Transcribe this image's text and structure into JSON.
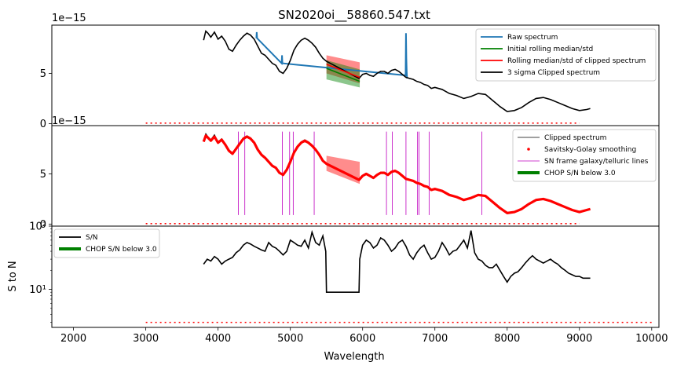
{
  "chart_data": [
    {
      "type": "line",
      "title": "SN2020oi__58860.547.txt",
      "scale_label": "1e−15",
      "xlim": [
        1700,
        10100
      ],
      "ylim": [
        -0.2,
        9.8
      ],
      "yticks": [
        0,
        5
      ],
      "ytick_labels": [
        "0",
        "5"
      ],
      "legend": {
        "placement": "upper right",
        "entries": [
          {
            "label": "Raw spectrum",
            "color": "#1f77b4"
          },
          {
            "label": "Initial rolling median/std",
            "color": "#008000"
          },
          {
            "label": "Rolling median/std of clipped spectrum",
            "color": "#ff0000"
          },
          {
            "label": "3 sigma Clipped spectrum",
            "color": "#000000"
          }
        ]
      },
      "series": [
        {
          "name": "Raw spectrum",
          "color": "#1f77b4",
          "x": [
            4530,
            4535,
            4540,
            4880,
            4885,
            4890,
            6595,
            6600,
            6605,
            6610,
            6615
          ],
          "y": [
            8.5,
            9.1,
            8.5,
            6.0,
            6.8,
            6.0,
            4.8,
            9.0,
            6.5,
            5.2,
            4.5
          ]
        },
        {
          "name": "3 sigma Clipped spectrum",
          "color": "#000000",
          "x": [
            3800,
            3830,
            3860,
            3900,
            3950,
            4000,
            4050,
            4100,
            4150,
            4200,
            4250,
            4300,
            4350,
            4400,
            4450,
            4500,
            4550,
            4600,
            4650,
            4700,
            4750,
            4800,
            4850,
            4900,
            4950,
            5000,
            5050,
            5100,
            5150,
            5200,
            5250,
            5300,
            5350,
            5400,
            5450,
            5500,
            5950,
            6000,
            6050,
            6100,
            6150,
            6200,
            6250,
            6300,
            6350,
            6400,
            6450,
            6500,
            6550,
            6600,
            6650,
            6700,
            6750,
            6800,
            6850,
            6900,
            6950,
            7000,
            7100,
            7200,
            7300,
            7400,
            7500,
            7600,
            7700,
            7800,
            7900,
            8000,
            8100,
            8200,
            8300,
            8400,
            8500,
            8600,
            8700,
            8800,
            8900,
            9000,
            9100,
            9150
          ],
          "y": [
            8.3,
            9.2,
            9.0,
            8.6,
            9.1,
            8.4,
            8.7,
            8.2,
            7.4,
            7.2,
            7.8,
            8.3,
            8.7,
            9.0,
            8.8,
            8.4,
            7.7,
            7.0,
            6.8,
            6.4,
            6.0,
            5.8,
            5.2,
            5.0,
            5.5,
            6.3,
            7.3,
            7.9,
            8.3,
            8.5,
            8.3,
            8.0,
            7.6,
            7.0,
            6.5,
            6.2,
            4.5,
            4.9,
            5.0,
            4.8,
            4.7,
            5.0,
            5.2,
            5.2,
            5.0,
            5.3,
            5.4,
            5.2,
            4.9,
            4.6,
            4.5,
            4.4,
            4.2,
            4.1,
            3.9,
            3.8,
            3.5,
            3.6,
            3.4,
            3.0,
            2.8,
            2.5,
            2.7,
            3.0,
            2.9,
            2.3,
            1.7,
            1.2,
            1.3,
            1.6,
            2.1,
            2.5,
            2.6,
            2.4,
            2.1,
            1.8,
            1.5,
            1.3,
            1.4,
            1.5
          ]
        },
        {
          "name": "Rolling median/std of clipped spectrum",
          "color": "#ff0000",
          "x": [
            5500,
            5960
          ],
          "y": [
            5.9,
            4.6
          ]
        },
        {
          "name": "Initial rolling median/std",
          "color": "#008000",
          "x": [
            5500,
            5960
          ],
          "y": [
            5.5,
            4.2
          ]
        },
        {
          "name": "red dotted",
          "color": "#ff0000",
          "x": [
            3000,
            9000
          ],
          "y": [
            0.05,
            0.05
          ]
        }
      ],
      "bands": [
        {
          "name": "Rolling median/std of clipped spectrum",
          "color": "#ff0000",
          "x": [
            5500,
            5960
          ],
          "lower": [
            5.0,
            4.0
          ],
          "upper": [
            6.8,
            6.1
          ]
        },
        {
          "name": "Initial rolling median/std",
          "color": "#008000",
          "x": [
            5500,
            5960
          ],
          "lower": [
            4.4,
            3.6
          ],
          "upper": [
            6.3,
            5.4
          ]
        }
      ]
    },
    {
      "type": "line",
      "scale_label": "1e−15",
      "xlim": [
        1700,
        10100
      ],
      "ylim": [
        -0.2,
        9.8
      ],
      "yticks": [
        0,
        5
      ],
      "ytick_labels": [
        "0",
        "5"
      ],
      "legend": {
        "placement": "upper right",
        "entries": [
          {
            "label": "Clipped spectrum",
            "color": "#000000"
          },
          {
            "label": "Savitsky-Golay smoothing",
            "color": "#ff0000"
          },
          {
            "label": "SN frame galaxy/telluric lines",
            "color": "#bf00bf"
          },
          {
            "label": "CHOP S/N below 3.0",
            "color": "#008000"
          }
        ]
      },
      "lines_x": [
        4280,
        4370,
        4890,
        4990,
        5040,
        5330,
        6330,
        6410,
        6600,
        6760,
        6780,
        6920,
        7650
      ],
      "band": {
        "x": [
          5500,
          5960
        ],
        "lower": [
          5.3,
          4.0
        ],
        "upper": [
          6.8,
          6.2
        ]
      },
      "series": [
        {
          "name": "Clipped spectrum",
          "color": "#000000",
          "x": [
            3800,
            3830,
            3860,
            3900,
            3950,
            4000,
            4050,
            4100,
            4150,
            4200,
            4250,
            4300,
            4350,
            4400,
            4450,
            4500,
            4550,
            4600,
            4650,
            4700,
            4750,
            4800,
            4850,
            4900,
            4950,
            5000,
            5050,
            5100,
            5150,
            5200,
            5250,
            5300,
            5350,
            5400,
            5450,
            5500,
            5950,
            6000,
            6050,
            6100,
            6150,
            6200,
            6250,
            6300,
            6350,
            6400,
            6450,
            6500,
            6550,
            6600,
            6650,
            6700,
            6750,
            6800,
            6850,
            6900,
            6950,
            7000,
            7100,
            7200,
            7300,
            7400,
            7500,
            7600,
            7700,
            7800,
            7900,
            8000,
            8100,
            8200,
            8300,
            8400,
            8500,
            8600,
            8700,
            8800,
            8900,
            9000,
            9100,
            9150
          ],
          "y": [
            8.3,
            9.0,
            8.7,
            8.4,
            8.9,
            8.2,
            8.5,
            8.0,
            7.3,
            7.0,
            7.6,
            8.1,
            8.6,
            8.8,
            8.6,
            8.2,
            7.5,
            6.9,
            6.6,
            6.2,
            5.8,
            5.6,
            5.1,
            4.9,
            5.4,
            6.2,
            7.2,
            7.8,
            8.2,
            8.4,
            8.2,
            7.9,
            7.4,
            6.9,
            6.3,
            6.0,
            4.4,
            4.8,
            5.0,
            4.8,
            4.6,
            4.9,
            5.1,
            5.1,
            4.9,
            5.2,
            5.3,
            5.1,
            4.8,
            4.5,
            4.4,
            4.3,
            4.1,
            4.0,
            3.8,
            3.7,
            3.4,
            3.5,
            3.3,
            2.9,
            2.7,
            2.4,
            2.6,
            2.9,
            2.8,
            2.2,
            1.6,
            1.1,
            1.2,
            1.5,
            2.0,
            2.4,
            2.5,
            2.3,
            2.0,
            1.7,
            1.4,
            1.2,
            1.4,
            1.5
          ]
        },
        {
          "name": "Savitsky-Golay smoothing",
          "color": "#ff0000",
          "x": [
            3800,
            3830,
            3860,
            3900,
            3950,
            4000,
            4050,
            4100,
            4150,
            4200,
            4250,
            4300,
            4350,
            4400,
            4450,
            4500,
            4550,
            4600,
            4650,
            4700,
            4750,
            4800,
            4850,
            4900,
            4950,
            5000,
            5050,
            5100,
            5150,
            5200,
            5250,
            5300,
            5350,
            5400,
            5450,
            5500,
            5950,
            6000,
            6050,
            6100,
            6150,
            6200,
            6250,
            6300,
            6350,
            6400,
            6450,
            6500,
            6550,
            6600,
            6650,
            6700,
            6750,
            6800,
            6850,
            6900,
            6950,
            7000,
            7100,
            7200,
            7300,
            7400,
            7500,
            7600,
            7700,
            7800,
            7900,
            8000,
            8100,
            8200,
            8300,
            8400,
            8500,
            8600,
            8700,
            8800,
            8900,
            9000,
            9100,
            9150
          ],
          "y": [
            8.2,
            8.8,
            8.6,
            8.3,
            8.7,
            8.1,
            8.4,
            7.9,
            7.3,
            7.0,
            7.5,
            8.0,
            8.5,
            8.7,
            8.5,
            8.1,
            7.4,
            6.9,
            6.6,
            6.2,
            5.8,
            5.6,
            5.1,
            4.9,
            5.4,
            6.2,
            7.1,
            7.7,
            8.1,
            8.3,
            8.1,
            7.8,
            7.4,
            6.9,
            6.3,
            6.0,
            4.4,
            4.8,
            5.0,
            4.8,
            4.6,
            4.9,
            5.1,
            5.1,
            4.9,
            5.2,
            5.3,
            5.1,
            4.8,
            4.5,
            4.4,
            4.3,
            4.1,
            4.0,
            3.8,
            3.7,
            3.4,
            3.5,
            3.3,
            2.9,
            2.7,
            2.4,
            2.6,
            2.9,
            2.8,
            2.2,
            1.6,
            1.1,
            1.2,
            1.5,
            2.0,
            2.4,
            2.5,
            2.3,
            2.0,
            1.7,
            1.4,
            1.2,
            1.4,
            1.5
          ]
        },
        {
          "name": "red dotted",
          "color": "#ff0000",
          "x": [
            3000,
            9000
          ],
          "y": [
            0.05,
            0.05
          ]
        }
      ]
    },
    {
      "type": "line",
      "xlabel": "Wavelength",
      "ylabel": "S to N",
      "yscale": "log",
      "xlim": [
        1700,
        10100
      ],
      "ylim": [
        2.5,
        100
      ],
      "xticks": [
        2000,
        3000,
        4000,
        5000,
        6000,
        7000,
        8000,
        9000,
        10000
      ],
      "xtick_labels": [
        "2000",
        "3000",
        "4000",
        "5000",
        "6000",
        "7000",
        "8000",
        "9000",
        "10000"
      ],
      "yticks": [
        10,
        100
      ],
      "ytick_labels": [
        "10¹",
        "10²"
      ],
      "legend": {
        "placement": "upper left",
        "entries": [
          {
            "label": "S/N",
            "color": "#000000"
          },
          {
            "label": "CHOP S/N below 3.0",
            "color": "#008000"
          }
        ]
      },
      "series": [
        {
          "name": "S/N",
          "color": "#000000",
          "x": [
            3800,
            3850,
            3900,
            3950,
            4000,
            4050,
            4100,
            4150,
            4200,
            4250,
            4300,
            4350,
            4400,
            4450,
            4500,
            4550,
            4600,
            4650,
            4700,
            4750,
            4800,
            4850,
            4900,
            4950,
            5000,
            5050,
            5100,
            5150,
            5200,
            5250,
            5300,
            5350,
            5400,
            5450,
            5490,
            5500,
            5950,
            5960,
            6000,
            6050,
            6100,
            6150,
            6200,
            6250,
            6300,
            6350,
            6400,
            6450,
            6500,
            6550,
            6600,
            6650,
            6700,
            6750,
            6800,
            6850,
            6900,
            6950,
            7000,
            7050,
            7100,
            7150,
            7200,
            7250,
            7300,
            7350,
            7400,
            7450,
            7500,
            7550,
            7600,
            7650,
            7700,
            7750,
            7800,
            7850,
            7900,
            7950,
            8000,
            8050,
            8100,
            8150,
            8200,
            8250,
            8300,
            8350,
            8400,
            8450,
            8500,
            8550,
            8600,
            8650,
            8700,
            8750,
            8800,
            8850,
            8900,
            8950,
            9000,
            9050,
            9100,
            9150
          ],
          "y": [
            25,
            30,
            28,
            33,
            30,
            25,
            28,
            30,
            32,
            38,
            42,
            50,
            55,
            52,
            48,
            45,
            42,
            40,
            55,
            48,
            45,
            40,
            35,
            40,
            60,
            55,
            50,
            48,
            60,
            45,
            80,
            55,
            50,
            70,
            40,
            9,
            9,
            30,
            50,
            60,
            55,
            45,
            50,
            65,
            60,
            50,
            40,
            45,
            55,
            60,
            48,
            35,
            30,
            38,
            45,
            50,
            38,
            30,
            32,
            40,
            55,
            45,
            35,
            40,
            42,
            50,
            60,
            45,
            85,
            38,
            30,
            28,
            24,
            22,
            22,
            25,
            20,
            16,
            13,
            16,
            18,
            19,
            22,
            26,
            30,
            34,
            30,
            28,
            26,
            28,
            30,
            27,
            25,
            22,
            20,
            18,
            17,
            16,
            16,
            15,
            15,
            15
          ]
        },
        {
          "name": "red dotted",
          "color": "#ff0000",
          "x": [
            3000,
            10000
          ],
          "y": [
            3,
            3
          ]
        }
      ]
    }
  ]
}
